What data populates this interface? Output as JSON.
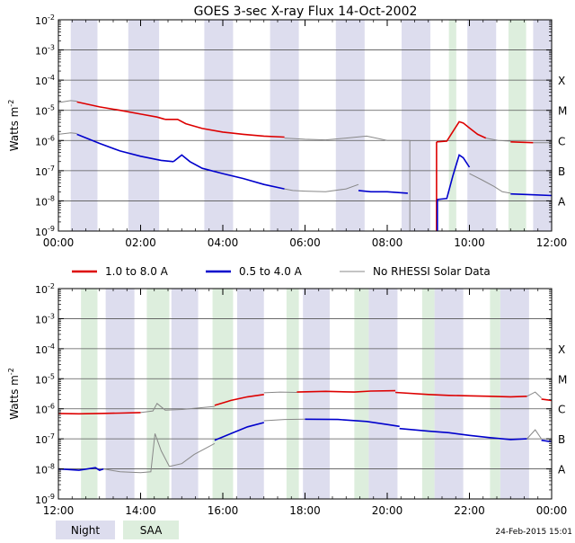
{
  "title": "GOES 3-sec X-ray Flux   14-Oct-2002",
  "ylabel": "Watts m",
  "ylabel_exp": "-2",
  "y_ticks": [
    {
      "base": "10",
      "exp": "-2",
      "value": 0.01
    },
    {
      "base": "10",
      "exp": "-3",
      "value": 0.001
    },
    {
      "base": "10",
      "exp": "-4",
      "value": 0.0001
    },
    {
      "base": "10",
      "exp": "-5",
      "value": 1e-05
    },
    {
      "base": "10",
      "exp": "-6",
      "value": 1e-06
    },
    {
      "base": "10",
      "exp": "-7",
      "value": 1e-07
    },
    {
      "base": "10",
      "exp": "-8",
      "value": 1e-08
    },
    {
      "base": "10",
      "exp": "-9",
      "value": 1e-09
    }
  ],
  "flare_classes": [
    {
      "label": "X",
      "value": 0.0001
    },
    {
      "label": "M",
      "value": 1e-05
    },
    {
      "label": "C",
      "value": 1e-06
    },
    {
      "label": "B",
      "value": 1e-07
    },
    {
      "label": "A",
      "value": 1e-08
    }
  ],
  "legend": {
    "long": "1.0 to 8.0 A",
    "short": "0.5 to 4.0 A",
    "none": "No RHESSI Solar Data"
  },
  "bottom_legend": {
    "night": "Night",
    "saa": "SAA"
  },
  "timestamp": "24-Feb-2015 15:01",
  "colors": {
    "long": "#dd0000",
    "short": "#0000cc",
    "none": "#888888",
    "night": "#ddddee",
    "saa": "#ddeedd",
    "grid": "#555555"
  },
  "chart_data": [
    {
      "type": "line",
      "x_unit": "hours UT",
      "xlim": [
        0,
        12
      ],
      "ylim": [
        1e-09,
        0.01
      ],
      "log_y": true,
      "x_tick_labels": [
        "00:00",
        "02:00",
        "04:00",
        "06:00",
        "08:00",
        "10:00",
        "12:00"
      ],
      "x_tick_values": [
        0,
        2,
        4,
        6,
        8,
        10,
        12
      ],
      "night_bands": [
        [
          0.3,
          0.95
        ],
        [
          1.7,
          2.45
        ],
        [
          3.55,
          4.25
        ],
        [
          5.15,
          5.85
        ],
        [
          6.75,
          7.45
        ],
        [
          8.35,
          9.05
        ],
        [
          9.95,
          10.65
        ],
        [
          11.55,
          12
        ]
      ],
      "saa_bands": [
        [
          9.5,
          9.68
        ],
        [
          10.95,
          11.38
        ]
      ],
      "series": [
        {
          "key": "long_gray",
          "color_key": "none",
          "x": [
            0,
            0.3,
            0.45
          ],
          "y": [
            1.8e-05,
            2.1e-05,
            2e-05
          ]
        },
        {
          "key": "long",
          "color_key": "long",
          "x": [
            0.45,
            1.0,
            1.5,
            2.0,
            2.4,
            2.6
          ],
          "y": [
            1.9e-05,
            1.3e-05,
            1e-05,
            7.5e-06,
            6e-06,
            5e-06
          ]
        },
        {
          "key": "long_flare",
          "color_key": "long",
          "x": [
            2.6,
            2.9,
            3.1,
            3.5,
            4.0,
            4.5,
            5.0,
            5.5
          ],
          "y": [
            5e-06,
            5e-06,
            3.6e-06,
            2.5e-06,
            1.9e-06,
            1.6e-06,
            1.4e-06,
            1.3e-06
          ]
        },
        {
          "key": "long_gray2",
          "color_key": "none",
          "x": [
            5.5,
            6.0,
            6.5,
            7.0,
            7.5,
            8.0,
            8.55
          ],
          "y": [
            1.2e-06,
            1.1e-06,
            1.05e-06,
            1.2e-06,
            1.4e-06,
            1e-06,
            1e-06
          ]
        },
        {
          "key": "long_post",
          "color_key": "long",
          "x": [
            9.2,
            9.45,
            9.6,
            9.75,
            9.85,
            10.0,
            10.2,
            10.4
          ],
          "y": [
            9e-07,
            9.5e-07,
            2e-06,
            4.2e-06,
            3.8e-06,
            2.6e-06,
            1.6e-06,
            1.2e-06
          ]
        },
        {
          "key": "long_gray3",
          "color_key": "none",
          "x": [
            10.4,
            10.7,
            11.0
          ],
          "y": [
            1.2e-06,
            1e-06,
            9.5e-07
          ]
        },
        {
          "key": "long_end",
          "color_key": "long",
          "x": [
            11.0,
            11.55
          ],
          "y": [
            9e-07,
            8.5e-07
          ]
        },
        {
          "key": "long_gray4",
          "color_key": "none",
          "x": [
            11.55,
            12
          ],
          "y": [
            8.5e-07,
            8.5e-07
          ]
        },
        {
          "key": "short_gray",
          "color_key": "none",
          "x": [
            0,
            0.3,
            0.45
          ],
          "y": [
            1.6e-06,
            1.8e-06,
            1.7e-06
          ]
        },
        {
          "key": "short",
          "color_key": "short",
          "x": [
            0.45,
            1.0,
            1.5,
            2.0,
            2.5,
            2.8
          ],
          "y": [
            1.6e-06,
            8e-07,
            4.5e-07,
            3e-07,
            2.2e-07,
            2e-07
          ]
        },
        {
          "key": "short_flare",
          "color_key": "short",
          "x": [
            2.8,
            3.0,
            3.2,
            3.5,
            4.0,
            4.5,
            5.0,
            5.5
          ],
          "y": [
            2e-07,
            3.3e-07,
            2e-07,
            1.2e-07,
            8e-08,
            5.5e-08,
            3.5e-08,
            2.5e-08
          ]
        },
        {
          "key": "short_gray2",
          "color_key": "none",
          "x": [
            5.5,
            5.7,
            6.0,
            6.5,
            7.0,
            7.3
          ],
          "y": [
            2.5e-08,
            2.2e-08,
            2.1e-08,
            2e-08,
            2.5e-08,
            3.5e-08
          ]
        },
        {
          "key": "short_mid",
          "color_key": "short",
          "x": [
            7.3,
            7.6,
            8.0,
            8.5
          ],
          "y": [
            2.2e-08,
            2e-08,
            2e-08,
            1.8e-08
          ]
        },
        {
          "key": "short_post",
          "color_key": "short",
          "x": [
            9.2,
            9.45,
            9.6,
            9.75,
            9.85,
            10.0
          ],
          "y": [
            1.1e-08,
            1.2e-08,
            7e-08,
            3.3e-07,
            2.7e-07,
            1.3e-07
          ]
        },
        {
          "key": "short_gray3",
          "color_key": "none",
          "x": [
            10.0,
            10.3,
            10.6,
            10.8,
            11.0
          ],
          "y": [
            8e-08,
            5e-08,
            3e-08,
            2e-08,
            1.8e-08
          ]
        },
        {
          "key": "short_end",
          "color_key": "short",
          "x": [
            11.0,
            11.5,
            12.0
          ],
          "y": [
            1.7e-08,
            1.6e-08,
            1.5e-08
          ]
        }
      ]
    },
    {
      "type": "line",
      "x_unit": "hours UT",
      "xlim": [
        12,
        24
      ],
      "ylim": [
        1e-09,
        0.01
      ],
      "log_y": true,
      "x_tick_labels": [
        "12:00",
        "14:00",
        "16:00",
        "18:00",
        "20:00",
        "22:00",
        "00:00"
      ],
      "x_tick_values": [
        12,
        14,
        16,
        18,
        20,
        22,
        24
      ],
      "night_bands": [
        [
          13.15,
          13.85
        ],
        [
          14.75,
          15.4
        ],
        [
          16.35,
          17.0
        ],
        [
          17.95,
          18.6
        ],
        [
          19.55,
          20.25
        ],
        [
          21.15,
          21.85
        ],
        [
          22.75,
          23.45
        ]
      ],
      "saa_bands": [
        [
          12.55,
          12.95
        ],
        [
          14.15,
          14.7
        ],
        [
          15.75,
          16.25
        ],
        [
          17.55,
          17.85
        ],
        [
          19.2,
          19.55
        ],
        [
          20.85,
          21.15
        ],
        [
          22.5,
          22.75
        ]
      ],
      "series": [
        {
          "key": "long_a",
          "color_key": "long",
          "x": [
            12,
            12.5,
            13.0,
            13.5,
            14.0
          ],
          "y": [
            7e-07,
            6.8e-07,
            7e-07,
            7.2e-07,
            7.5e-07
          ]
        },
        {
          "key": "long_gray_a",
          "color_key": "none",
          "x": [
            14.0,
            14.3,
            14.4,
            14.6,
            15.0,
            15.8
          ],
          "y": [
            7.5e-07,
            8.5e-07,
            1.5e-06,
            9e-07,
            9.5e-07,
            1.2e-06
          ]
        },
        {
          "key": "long_b",
          "color_key": "long",
          "x": [
            15.8,
            16.2,
            16.6,
            17.0
          ],
          "y": [
            1.3e-06,
            1.9e-06,
            2.5e-06,
            3e-06
          ]
        },
        {
          "key": "long_gray_b",
          "color_key": "none",
          "x": [
            17.0,
            17.4,
            17.8
          ],
          "y": [
            3.4e-06,
            3.6e-06,
            3.5e-06
          ]
        },
        {
          "key": "long_c",
          "color_key": "long",
          "x": [
            17.8,
            18.5,
            19.2,
            19.6,
            20.2
          ],
          "y": [
            3.6e-06,
            3.8e-06,
            3.6e-06,
            3.9e-06,
            4e-06
          ]
        },
        {
          "key": "long_d",
          "color_key": "long",
          "x": [
            20.2,
            21.0,
            21.5,
            22.0,
            22.5,
            23.0,
            23.4
          ],
          "y": [
            3.5e-06,
            3e-06,
            2.8e-06,
            2.7e-06,
            2.6e-06,
            2.5e-06,
            2.6e-06
          ]
        },
        {
          "key": "long_gray_c",
          "color_key": "none",
          "x": [
            23.4,
            23.6,
            23.75
          ],
          "y": [
            2.6e-06,
            3.6e-06,
            2.3e-06
          ]
        },
        {
          "key": "long_e",
          "color_key": "long",
          "x": [
            23.75,
            24
          ],
          "y": [
            2.1e-06,
            1.9e-06
          ]
        },
        {
          "key": "short_a",
          "color_key": "short",
          "x": [
            12,
            12.5,
            12.9,
            13.0,
            13.1
          ],
          "y": [
            1e-08,
            9e-09,
            1.1e-08,
            9e-09,
            1e-08
          ]
        },
        {
          "key": "short_gray_a",
          "color_key": "none",
          "x": [
            13.1,
            13.5,
            14.0,
            14.25,
            14.35,
            14.5,
            14.7
          ],
          "y": [
            1e-08,
            8e-09,
            7.5e-09,
            8e-09,
            1.5e-07,
            4e-08,
            1.2e-08
          ]
        },
        {
          "key": "short_gray_b",
          "color_key": "none",
          "x": [
            14.7,
            15.0,
            15.3,
            15.8
          ],
          "y": [
            1.2e-08,
            1.5e-08,
            3e-08,
            7e-08
          ]
        },
        {
          "key": "short_b",
          "color_key": "short",
          "x": [
            15.8,
            16.2,
            16.6,
            17.0
          ],
          "y": [
            9e-08,
            1.5e-07,
            2.5e-07,
            3.5e-07
          ]
        },
        {
          "key": "short_gray_c",
          "color_key": "none",
          "x": [
            17.0,
            17.5,
            18.0
          ],
          "y": [
            4e-07,
            4.4e-07,
            4.5e-07
          ]
        },
        {
          "key": "short_c",
          "color_key": "short",
          "x": [
            18.0,
            18.8,
            19.5,
            20.0,
            20.3
          ],
          "y": [
            4.5e-07,
            4.4e-07,
            3.8e-07,
            3e-07,
            2.6e-07
          ]
        },
        {
          "key": "short_d",
          "color_key": "short",
          "x": [
            20.3,
            21.0,
            21.5,
            22.0,
            22.5,
            23.0,
            23.4
          ],
          "y": [
            2.2e-07,
            1.8e-07,
            1.6e-07,
            1.3e-07,
            1.1e-07,
            9.5e-08,
            1e-07
          ]
        },
        {
          "key": "short_gray_d",
          "color_key": "none",
          "x": [
            23.4,
            23.6,
            23.75
          ],
          "y": [
            1e-07,
            2e-07,
            1e-07
          ]
        },
        {
          "key": "short_e",
          "color_key": "short",
          "x": [
            23.75,
            24
          ],
          "y": [
            9e-08,
            8e-08
          ]
        }
      ]
    }
  ]
}
